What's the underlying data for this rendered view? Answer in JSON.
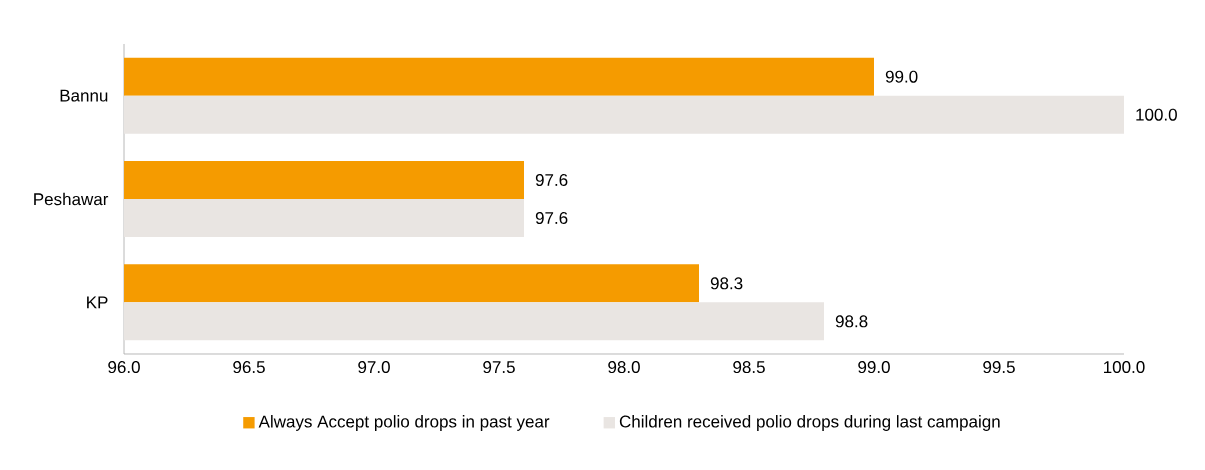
{
  "chart_data": {
    "type": "bar",
    "orientation": "horizontal",
    "categories": [
      "Bannu",
      "Peshawar",
      "KP"
    ],
    "series": [
      {
        "name": "Always Accept polio drops in past year",
        "color": "#f59b00",
        "values": [
          99.0,
          97.6,
          98.3
        ],
        "value_labels": [
          "99.0",
          "97.6",
          "98.3"
        ]
      },
      {
        "name": "Children received polio drops during last campaign",
        "color": "#e9e5e2",
        "values": [
          100.0,
          97.6,
          98.8
        ],
        "value_labels": [
          "100.0",
          "97.6",
          "98.8"
        ]
      }
    ],
    "xlim": [
      96,
      100
    ],
    "xticks": [
      {
        "value": 96,
        "label": "96.0"
      },
      {
        "value": 96.5,
        "label": "96.5"
      },
      {
        "value": 97,
        "label": "97.0"
      },
      {
        "value": 97.5,
        "label": "97.5"
      },
      {
        "value": 98,
        "label": "98.0"
      },
      {
        "value": 98.5,
        "label": "98.5"
      },
      {
        "value": 99,
        "label": "99.0"
      },
      {
        "value": 99.5,
        "label": "99.5"
      },
      {
        "value": 100,
        "label": "100.0"
      }
    ],
    "legend": "bottom",
    "grid": false
  }
}
